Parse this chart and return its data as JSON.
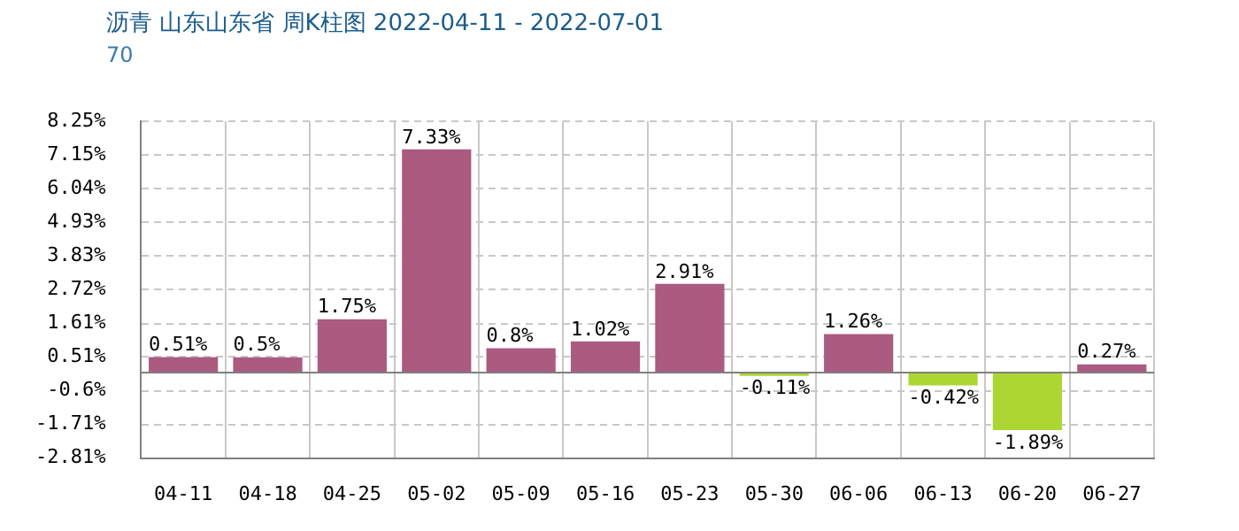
{
  "chart_data": {
    "type": "bar",
    "title": "沥青 山东山东省 周K柱图 2022-04-11 - 2022-07-01",
    "subtitle": "70",
    "categories": [
      "04-11",
      "04-18",
      "04-25",
      "05-02",
      "05-09",
      "05-16",
      "05-23",
      "05-30",
      "06-06",
      "06-13",
      "06-20",
      "06-27"
    ],
    "values": [
      0.51,
      0.5,
      1.75,
      7.33,
      0.8,
      1.02,
      2.91,
      -0.11,
      1.26,
      -0.42,
      -1.89,
      0.27
    ],
    "colors": [
      "#ab5a80",
      "#ab5a80",
      "#ab5a80",
      "#ab5a80",
      "#ab5a80",
      "#ab5a80",
      "#ab5a80",
      "#acd733",
      "#ab5a80",
      "#acd733",
      "#acd733",
      "#ab5a80"
    ],
    "value_labels": [
      "0.51%",
      "0.5%",
      "1.75%",
      "7.33%",
      "0.8%",
      "1.02%",
      "2.91%",
      "-0.11%",
      "1.26%",
      "-0.42%",
      "-1.89%",
      "0.27%"
    ],
    "ylim": [
      -2.81,
      8.25
    ],
    "yticks": [
      {
        "value": -2.81,
        "label": "-2.81%"
      },
      {
        "value": -1.71,
        "label": "-1.71%"
      },
      {
        "value": -0.6,
        "label": "-0.6%"
      },
      {
        "value": 0.51,
        "label": "0.51%"
      },
      {
        "value": 1.61,
        "label": "1.61%"
      },
      {
        "value": 2.72,
        "label": "2.72%"
      },
      {
        "value": 3.83,
        "label": "3.83%"
      },
      {
        "value": 4.93,
        "label": "4.93%"
      },
      {
        "value": 6.04,
        "label": "6.04%"
      },
      {
        "value": 7.15,
        "label": "7.15%"
      },
      {
        "value": 8.25,
        "label": "8.25%"
      }
    ],
    "grid": true,
    "legend": false
  }
}
